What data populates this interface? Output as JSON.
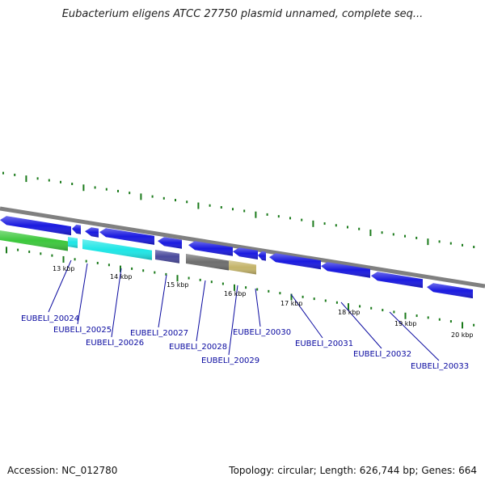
{
  "title": "Eubacterium eligens ATCC 27750 plasmid unnamed, complete seq...",
  "footer": {
    "accession": "Accession: NC_012780",
    "summary": "Topology: circular; Length: 626,744 bp; Genes: 664"
  },
  "colors": {
    "backbone": "#808080",
    "tick": "#1a7a1a",
    "label": "#0a0aa0",
    "gene_forward": "#1a1ae0",
    "track_green": "#3cc83c",
    "track_cyan": "#1ee6e6",
    "track_purple": "#4a4a9c",
    "track_gray": "#6e6e6e",
    "track_khaki": "#c4b46a"
  },
  "scale_labels": [
    "13 kbp",
    "14 kbp",
    "15 kbp",
    "16 kbp",
    "17 kbp",
    "18 kbp",
    "19 kbp",
    "20 kbp"
  ],
  "gene_labels": [
    "EUBELI_20024",
    "EUBELI_20025",
    "EUBELI_20026",
    "EUBELI_20027",
    "EUBELI_20028",
    "EUBELI_20029",
    "EUBELI_20030",
    "EUBELI_20031",
    "EUBELI_20032",
    "EUBELI_20033"
  ]
}
